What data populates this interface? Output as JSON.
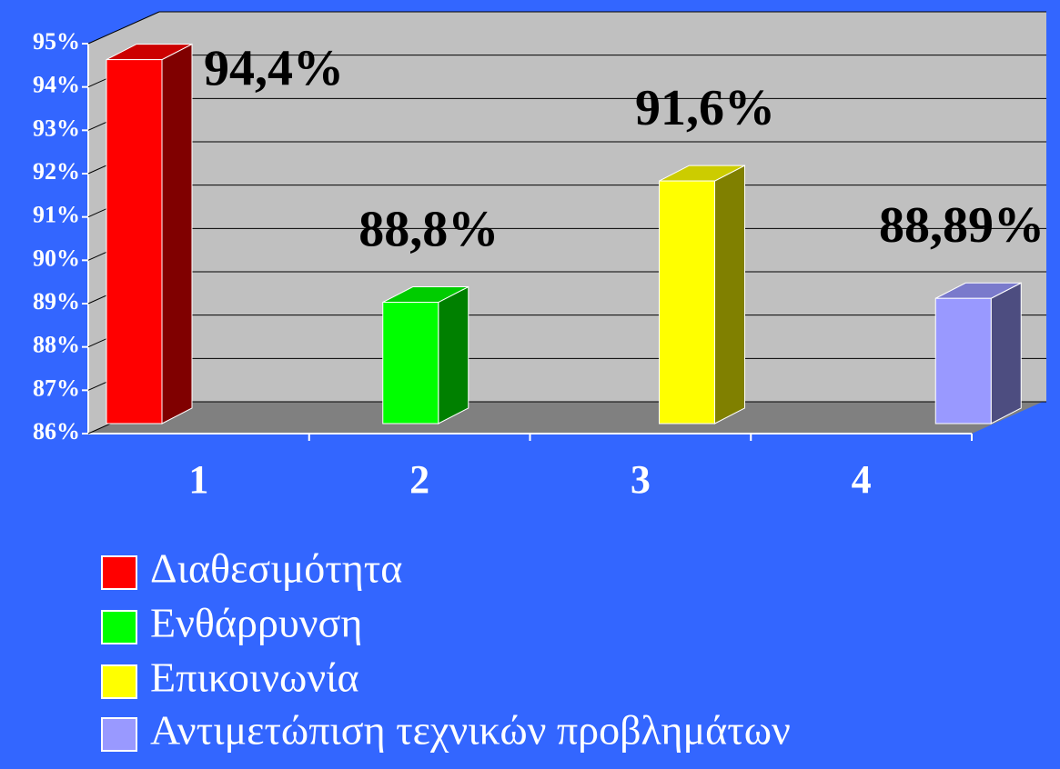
{
  "chart_data": {
    "type": "bar3d",
    "categories": [
      "1",
      "2",
      "3",
      "4"
    ],
    "series": [
      {
        "name": "Διαθεσιμότητα",
        "color": "#ff0000",
        "values": [
          94.4,
          null,
          null,
          null
        ],
        "value_labels": [
          "94,4%",
          null,
          null,
          null
        ]
      },
      {
        "name": "Ενθάρρυνση",
        "color": "#00ff00",
        "values": [
          null,
          88.8,
          null,
          null
        ],
        "value_labels": [
          null,
          "88,8%",
          null,
          null
        ]
      },
      {
        "name": "Επικοινωνία",
        "color": "#ffff00",
        "values": [
          null,
          null,
          91.6,
          null
        ],
        "value_labels": [
          null,
          null,
          "91,6%",
          null
        ]
      },
      {
        "name": "Αντιμετώπιση τεχνικών προβλημάτων",
        "color": "#9999ff",
        "values": [
          null,
          null,
          null,
          88.89
        ],
        "value_labels": [
          null,
          null,
          null,
          "88,89%"
        ]
      }
    ],
    "ylim": [
      86,
      95
    ],
    "yticks": [
      {
        "value": 86,
        "label": "86%"
      },
      {
        "value": 87,
        "label": "87%"
      },
      {
        "value": 88,
        "label": "88%"
      },
      {
        "value": 89,
        "label": "89%"
      },
      {
        "value": 90,
        "label": "90%"
      },
      {
        "value": 91,
        "label": "91%"
      },
      {
        "value": 92,
        "label": "92%"
      },
      {
        "value": 93,
        "label": "93%"
      },
      {
        "value": 94,
        "label": "94%"
      },
      {
        "value": 95,
        "label": "95%"
      }
    ],
    "grid": true
  }
}
